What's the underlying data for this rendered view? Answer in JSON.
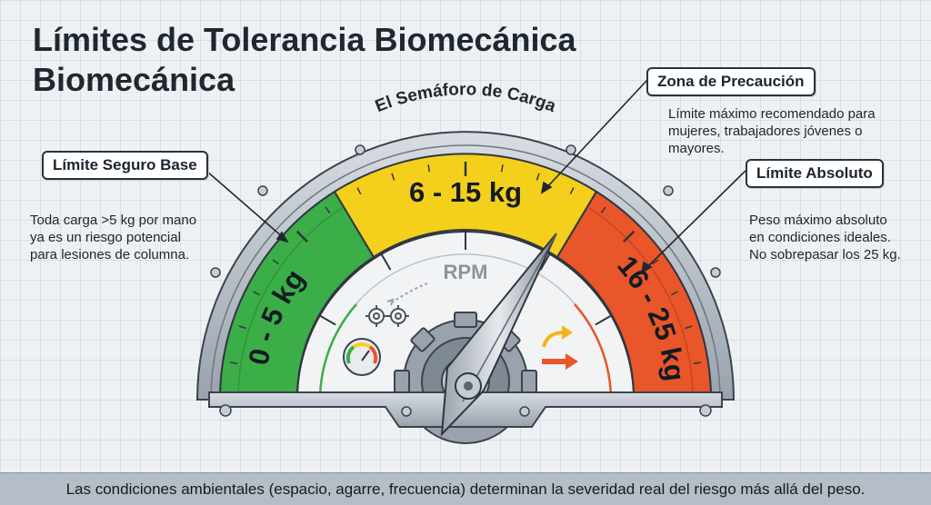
{
  "title": {
    "line1": "Límites de Tolerancia Biomecánica",
    "line2": "Biomecánica"
  },
  "gauge": {
    "arc_title": "El Semáforo de Carga",
    "dial_label": "RPM",
    "zones": [
      {
        "label": "0 - 5 kg",
        "color": "#3cae48"
      },
      {
        "label": "6 - 15 kg",
        "color": "#f4cf1c"
      },
      {
        "label": "16 - 25 kg",
        "color": "#e8562a"
      }
    ]
  },
  "callouts": {
    "safe": {
      "label": "Límite Seguro Base",
      "text": [
        "Toda carga >5 kg por mano",
        "ya es un riesgo potencial",
        "para lesiones de columna."
      ]
    },
    "caution": {
      "label": "Zona de Precaución",
      "text": [
        "Límite máximo recomendado para",
        "mujeres, trabajadores jóvenes o",
        "mayores."
      ]
    },
    "absolute": {
      "label": "Límite Absoluto",
      "text": [
        "Peso máximo absoluto",
        "en condiciones ideales.",
        "No sobrepasar los 25 kg."
      ]
    }
  },
  "footer": {
    "text": "Las condiciones ambientales (espacio, agarre, frecuencia) determinan la severidad real del riesgo más allá del peso."
  }
}
